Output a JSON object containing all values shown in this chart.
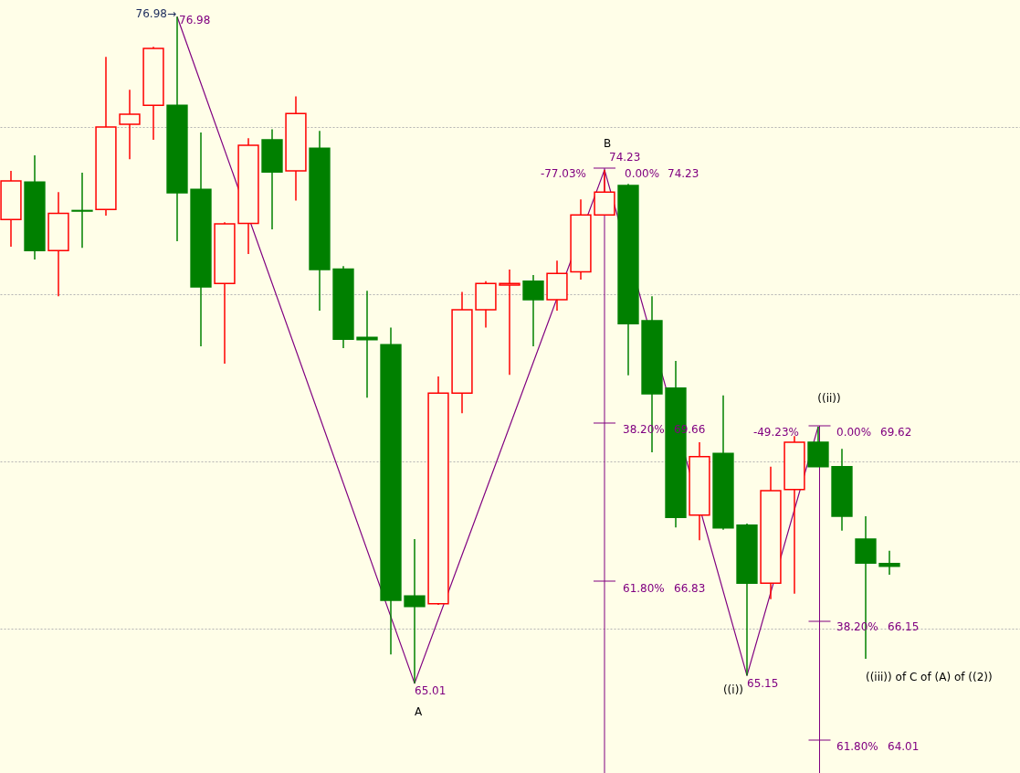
{
  "chart_data": {
    "type": "candlestick",
    "categories": [
      null,
      null,
      null,
      null,
      null,
      null,
      null,
      null,
      null,
      null,
      null,
      null,
      null,
      null,
      null,
      null,
      null,
      null,
      null,
      null,
      null,
      null,
      null,
      null,
      null,
      null,
      null,
      null,
      null,
      null,
      null,
      null,
      null,
      null,
      null,
      null,
      null,
      null
    ],
    "ohlc": [
      [
        73.34,
        74.21,
        72.85,
        74.03
      ],
      [
        74.01,
        74.49,
        72.62,
        72.78
      ],
      [
        72.78,
        73.83,
        71.96,
        73.45
      ],
      [
        73.5,
        74.18,
        72.83,
        73.49
      ],
      [
        73.52,
        76.26,
        73.41,
        75.0
      ],
      [
        75.05,
        75.67,
        74.42,
        75.23
      ],
      [
        75.39,
        76.44,
        74.77,
        76.41
      ],
      [
        75.39,
        76.98,
        72.95,
        73.82
      ],
      [
        73.88,
        74.9,
        71.06,
        72.13
      ],
      [
        72.19,
        73.29,
        70.75,
        73.26
      ],
      [
        73.27,
        74.8,
        72.72,
        74.67
      ],
      [
        74.77,
        74.96,
        73.16,
        74.19
      ],
      [
        74.21,
        75.55,
        73.68,
        75.24
      ],
      [
        74.62,
        74.93,
        71.7,
        72.44
      ],
      [
        72.45,
        72.5,
        71.03,
        71.19
      ],
      [
        71.22,
        72.06,
        70.14,
        71.18
      ],
      [
        71.09,
        71.4,
        65.53,
        66.5
      ],
      [
        66.58,
        67.6,
        65.01,
        66.39
      ],
      [
        66.44,
        70.52,
        66.42,
        70.22
      ],
      [
        70.22,
        72.04,
        69.86,
        71.72
      ],
      [
        71.72,
        72.23,
        71.4,
        72.19
      ],
      [
        72.16,
        72.44,
        70.55,
        72.19
      ],
      [
        72.23,
        72.34,
        71.06,
        71.9
      ],
      [
        71.9,
        72.6,
        71.7,
        72.37
      ],
      [
        72.4,
        73.7,
        72.26,
        73.42
      ],
      [
        73.42,
        74.23,
        73.42,
        73.83
      ],
      [
        73.95,
        73.98,
        70.54,
        71.47
      ],
      [
        71.52,
        71.96,
        69.16,
        70.21
      ],
      [
        70.31,
        70.8,
        67.81,
        67.99
      ],
      [
        68.03,
        69.34,
        67.58,
        69.08
      ],
      [
        69.14,
        70.18,
        67.77,
        67.8
      ],
      [
        67.85,
        67.88,
        65.15,
        66.81
      ],
      [
        66.81,
        68.9,
        66.52,
        68.47
      ],
      [
        68.49,
        69.45,
        66.62,
        69.34
      ],
      [
        69.34,
        69.62,
        68.9,
        68.9
      ],
      [
        68.9,
        69.22,
        67.75,
        68.01
      ],
      [
        67.6,
        68.01,
        65.45,
        67.17
      ],
      [
        67.16,
        67.39,
        66.96,
        67.11
      ]
    ],
    "colors": [
      "#ff0000",
      "#008000",
      "#ff0000",
      "#008000",
      "#ff0000",
      "#ff0000",
      "#ff0000",
      "#008000",
      "#008000",
      "#ff0000",
      "#ff0000",
      "#008000",
      "#ff0000",
      "#008000",
      "#008000",
      "#008000",
      "#008000",
      "#008000",
      "#ff0000",
      "#ff0000",
      "#ff0000",
      "#ff0000",
      "#008000",
      "#ff0000",
      "#ff0000",
      "#ff0000",
      "#008000",
      "#008000",
      "#008000",
      "#ff0000",
      "#008000",
      "#008000",
      "#ff0000",
      "#ff0000",
      "#008000",
      "#008000",
      "#008000",
      "#008000"
    ],
    "series": [
      {
        "type": "line",
        "color": "#800080",
        "values": [
          null,
          null,
          null,
          null,
          null,
          null,
          null,
          76.98,
          null,
          null,
          null,
          null,
          null,
          null,
          null,
          null,
          null,
          65.01,
          null,
          null,
          null,
          null,
          null,
          null,
          null,
          74.23,
          null,
          null,
          null,
          null,
          null,
          65.15,
          null,
          null,
          69.62,
          null,
          null,
          null
        ]
      }
    ],
    "ylim": [
      63.4,
      77.28
    ],
    "yticks": [
      {
        "value": 75,
        "label": null
      },
      {
        "value": 72,
        "label": null
      },
      {
        "value": 69,
        "label": null
      },
      {
        "value": 66,
        "label": null
      }
    ],
    "grid": "y",
    "annotations": [
      "76.98→",
      "76.98",
      "B",
      "-77.03%",
      "74.23",
      "0.00%",
      "74.23",
      "38.20%",
      "69.66",
      "61.80%",
      "66.83",
      "65.01",
      "A",
      "((i))",
      "65.15",
      "((ii))",
      "-49.23%",
      "0.00%",
      "69.62",
      "38.20%",
      "66.15",
      "61.80%",
      "64.01",
      "((iii)) of C of (A) of ((2))"
    ]
  }
}
